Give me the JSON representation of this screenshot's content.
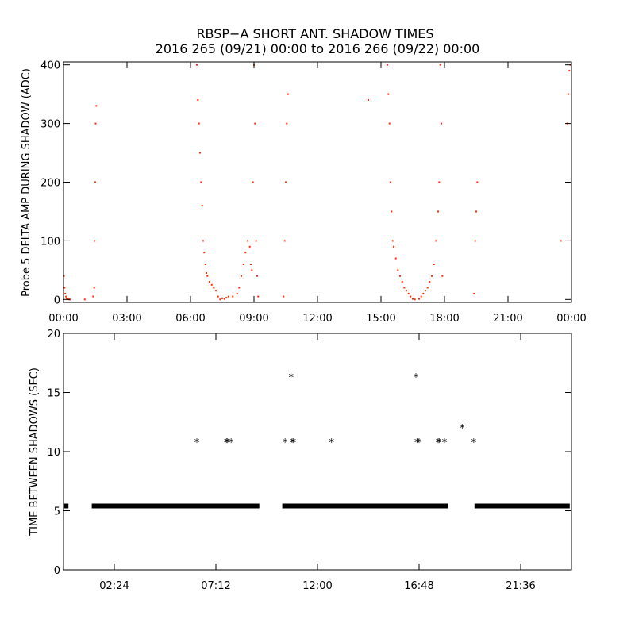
{
  "title": {
    "line1": "RBSP−A SHORT ANT. SHADOW TIMES",
    "line2": "2016 265 (09/21) 00:00 to 2016 266 (09/22) 00:00"
  },
  "colors": {
    "top_series": "#ff2a00",
    "bottom_series": "#000000",
    "axes": "#000000"
  },
  "chart_data": [
    {
      "id": "top",
      "type": "scatter",
      "ylabel": "Probe 5 DELTA AMP DURING SHADOW (ADC)",
      "xlabel": "",
      "xlim": [
        0,
        24
      ],
      "ylim": [
        -5,
        405
      ],
      "xticks": [
        0,
        3,
        6,
        9,
        12,
        15,
        18,
        21,
        24
      ],
      "xtick_labels": [
        "00:00",
        "03:00",
        "06:00",
        "09:00",
        "12:00",
        "15:00",
        "18:00",
        "21:00",
        "00:00"
      ],
      "yticks": [
        0,
        100,
        200,
        300,
        400
      ],
      "ytick_labels": [
        "0",
        "100",
        "200",
        "300",
        "400"
      ],
      "grid": false,
      "series": [
        {
          "color": "#ff2a00",
          "x": [
            0.02,
            0.05,
            0.08,
            0.12,
            0.15,
            0.2,
            0.25,
            0.3,
            1.0,
            1.45,
            1.47,
            1.5,
            1.52,
            1.55,
            1.4,
            6.3,
            6.35,
            6.4,
            6.45,
            6.5,
            6.55,
            6.6,
            6.65,
            6.7,
            6.75,
            6.8,
            6.9,
            7.0,
            7.1,
            7.2,
            7.3,
            7.4,
            7.5,
            7.6,
            7.7,
            7.8,
            8.0,
            8.2,
            8.3,
            8.4,
            8.5,
            8.6,
            8.7,
            8.8,
            8.85,
            8.9,
            8.95,
            9.0,
            9.05,
            9.1,
            9.15,
            9.2,
            10.4,
            10.45,
            10.5,
            10.55,
            10.6,
            14.4,
            15.3,
            15.35,
            15.4,
            15.45,
            15.5,
            15.55,
            15.6,
            15.7,
            15.8,
            15.9,
            16.0,
            16.1,
            16.2,
            16.3,
            16.4,
            16.5,
            16.6,
            16.8,
            16.9,
            17.0,
            17.1,
            17.2,
            17.3,
            17.4,
            17.5,
            17.6,
            17.7,
            17.75,
            17.8,
            17.85,
            17.9,
            19.4,
            19.45,
            19.5,
            19.55,
            23.5,
            23.8,
            23.85,
            23.9,
            23.95
          ],
          "y": [
            40,
            20,
            10,
            5,
            2,
            1,
            0,
            0,
            0,
            20,
            100,
            200,
            300,
            330,
            5,
            400,
            340,
            300,
            250,
            200,
            160,
            100,
            80,
            60,
            45,
            40,
            30,
            25,
            20,
            15,
            5,
            0,
            2,
            1,
            3,
            5,
            5,
            10,
            20,
            40,
            60,
            80,
            100,
            90,
            60,
            50,
            200,
            400,
            300,
            100,
            40,
            5,
            5,
            100,
            200,
            300,
            350,
            340,
            400,
            350,
            300,
            200,
            150,
            100,
            90,
            70,
            50,
            40,
            30,
            20,
            15,
            10,
            5,
            1,
            0,
            1,
            5,
            10,
            15,
            20,
            30,
            40,
            60,
            100,
            150,
            200,
            400,
            300,
            40,
            10,
            100,
            150,
            200,
            100,
            300,
            350,
            390,
            400
          ]
        }
      ]
    },
    {
      "id": "bottom",
      "type": "scatter",
      "ylabel": "TIME BETWEEN SHADOWS (SEC)",
      "xlabel": "",
      "xlim": [
        0,
        1440
      ],
      "ylim": [
        0,
        20
      ],
      "xticks": [
        144,
        432,
        720,
        1008,
        1296
      ],
      "xtick_labels": [
        "02:24",
        "07:12",
        "12:00",
        "16:48",
        "21:36"
      ],
      "yticks": [
        0,
        5,
        10,
        15,
        20
      ],
      "ytick_labels": [
        "0",
        "5",
        "10",
        "15",
        "20"
      ],
      "grid": false,
      "series": [
        {
          "color": "#000000",
          "marker": "*",
          "baseline_value": 5.4,
          "baseline_ranges": [
            [
              2,
              14
            ],
            [
              80,
              555
            ],
            [
              620,
              1090
            ],
            [
              1165,
              1435
            ]
          ],
          "outliers_x": [
            378,
            462,
            465,
            475,
            628,
            645,
            648,
            652,
            760,
            999,
            1002,
            1008,
            1062,
            1065,
            1080,
            1130,
            1163
          ],
          "outliers_y": [
            10.8,
            10.8,
            10.8,
            10.8,
            10.8,
            16.3,
            10.8,
            10.8,
            10.8,
            16.3,
            10.8,
            10.8,
            10.8,
            10.8,
            10.8,
            12.0,
            10.8
          ]
        }
      ]
    }
  ]
}
